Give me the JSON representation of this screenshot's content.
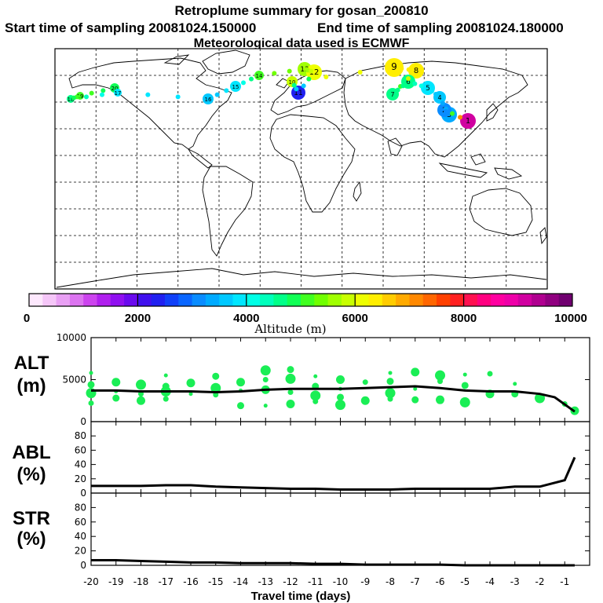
{
  "title": "Retroplume summary for gosan_200810",
  "start_time": "Start time of sampling 20081024.150000",
  "end_time": "End time of sampling 20081024.180000",
  "met_data": "Meteorological data used is ECMWF",
  "colorbar": {
    "label": "Altitude (m)",
    "ticks": [
      "0",
      "2000",
      "4000",
      "6000",
      "8000",
      "10000"
    ],
    "colors": [
      "#fde8fd",
      "#f5c6f8",
      "#e9a0f4",
      "#dc74f0",
      "#cc44ee",
      "#b020ee",
      "#9010f0",
      "#6a0aee",
      "#4010ee",
      "#2020f0",
      "#1040f8",
      "#0a66ff",
      "#0a8cff",
      "#00aaff",
      "#00c8ff",
      "#00e6ff",
      "#00ffe6",
      "#00ffbb",
      "#00ff88",
      "#10ff55",
      "#40ff20",
      "#70ff00",
      "#a0ff00",
      "#c8ff00",
      "#eeff00",
      "#ffee00",
      "#ffcc00",
      "#ffaa00",
      "#ff8800",
      "#ff6600",
      "#ff4000",
      "#ff2020",
      "#ff1050",
      "#ff0080",
      "#ff00a0",
      "#ee00a8",
      "#d000a0",
      "#b00090",
      "#900080",
      "#700070"
    ]
  },
  "map": {
    "plume_points": [
      {
        "day": "20",
        "alt": 4800
      },
      {
        "day": "19",
        "alt": 5200
      },
      {
        "day": "18",
        "alt": 4600
      },
      {
        "day": "17",
        "alt": 3900
      },
      {
        "day": "16",
        "alt": 3700
      },
      {
        "day": "15",
        "alt": 3800
      },
      {
        "day": "14",
        "alt": 5100
      },
      {
        "day": "13",
        "alt": 5600
      },
      {
        "day": "12",
        "alt": 6000
      },
      {
        "day": "11",
        "alt": 2300
      },
      {
        "day": "10",
        "alt": 5900
      },
      {
        "day": "9",
        "alt": 6300
      },
      {
        "day": "8",
        "alt": 6400
      },
      {
        "day": "7",
        "alt": 4600
      },
      {
        "day": "6",
        "alt": 4500
      },
      {
        "day": "5",
        "alt": 3900
      },
      {
        "day": "4",
        "alt": 3500
      },
      {
        "day": "3",
        "alt": 3300
      },
      {
        "day": "2",
        "alt": 3100
      },
      {
        "day": "1",
        "alt": 9000
      }
    ]
  },
  "chart_data": [
    {
      "type": "scatter",
      "panel_label": "ALT",
      "panel_unit": "(m)",
      "ylim": [
        0,
        10000
      ],
      "yticks": [
        "10000",
        "5000",
        "0"
      ],
      "xlim": [
        -20,
        0
      ],
      "line": {
        "x": [
          -20,
          -19,
          -18,
          -17,
          -16,
          -15,
          -14,
          -13,
          -12,
          -11,
          -10,
          -9,
          -8,
          -7,
          -6,
          -5,
          -4,
          -3,
          -2,
          -1.4,
          -0.6
        ],
        "y": [
          3700,
          3700,
          3600,
          3600,
          3600,
          3500,
          3600,
          3800,
          3900,
          3900,
          3900,
          4000,
          4100,
          4200,
          4000,
          3700,
          3600,
          3600,
          3300,
          2900,
          1200
        ]
      },
      "points": [
        {
          "x": -20,
          "y": 5800
        },
        {
          "x": -20,
          "y": 4400
        },
        {
          "x": -20,
          "y": 3400
        },
        {
          "x": -20,
          "y": 2200
        },
        {
          "x": -19,
          "y": 4700
        },
        {
          "x": -19,
          "y": 3600
        },
        {
          "x": -19,
          "y": 2800
        },
        {
          "x": -18,
          "y": 4400
        },
        {
          "x": -18,
          "y": 3300
        },
        {
          "x": -18,
          "y": 2500
        },
        {
          "x": -17,
          "y": 5500
        },
        {
          "x": -17,
          "y": 4200
        },
        {
          "x": -17,
          "y": 3600
        },
        {
          "x": -17,
          "y": 2700
        },
        {
          "x": -16,
          "y": 4600
        },
        {
          "x": -16,
          "y": 3300
        },
        {
          "x": -15,
          "y": 5400
        },
        {
          "x": -15,
          "y": 4000
        },
        {
          "x": -15,
          "y": 3200
        },
        {
          "x": -14,
          "y": 4700
        },
        {
          "x": -14,
          "y": 3700
        },
        {
          "x": -14,
          "y": 1900
        },
        {
          "x": -13,
          "y": 6100
        },
        {
          "x": -13,
          "y": 5000
        },
        {
          "x": -13,
          "y": 3800
        },
        {
          "x": -13,
          "y": 1900
        },
        {
          "x": -12,
          "y": 6200
        },
        {
          "x": -12,
          "y": 5100
        },
        {
          "x": -12,
          "y": 3500
        },
        {
          "x": -12,
          "y": 2100
        },
        {
          "x": -11,
          "y": 5400
        },
        {
          "x": -11,
          "y": 4200
        },
        {
          "x": -11,
          "y": 3100
        },
        {
          "x": -11,
          "y": 2400
        },
        {
          "x": -10,
          "y": 5000
        },
        {
          "x": -10,
          "y": 3900
        },
        {
          "x": -10,
          "y": 2900
        },
        {
          "x": -10,
          "y": 2000
        },
        {
          "x": -9,
          "y": 4700
        },
        {
          "x": -9,
          "y": 2500
        },
        {
          "x": -8,
          "y": 5800
        },
        {
          "x": -8,
          "y": 4800
        },
        {
          "x": -8,
          "y": 3400
        },
        {
          "x": -8,
          "y": 2700
        },
        {
          "x": -7,
          "y": 5900
        },
        {
          "x": -7,
          "y": 3900
        },
        {
          "x": -7,
          "y": 2600
        },
        {
          "x": -6,
          "y": 5500
        },
        {
          "x": -6,
          "y": 4800
        },
        {
          "x": -6,
          "y": 2600
        },
        {
          "x": -5,
          "y": 5600
        },
        {
          "x": -5,
          "y": 4300
        },
        {
          "x": -5,
          "y": 2300
        },
        {
          "x": -4,
          "y": 5700
        },
        {
          "x": -4,
          "y": 3300
        },
        {
          "x": -3,
          "y": 4500
        },
        {
          "x": -3,
          "y": 3300
        },
        {
          "x": -2,
          "y": 2800
        },
        {
          "x": -1,
          "y": 2100
        },
        {
          "x": -0.6,
          "y": 1300
        }
      ]
    },
    {
      "type": "line",
      "panel_label": "ABL",
      "panel_unit": "(%)",
      "ylim": [
        0,
        100
      ],
      "yticks": [
        "80",
        "60",
        "40",
        "20",
        "0"
      ],
      "x": [
        -20,
        -19,
        -18,
        -17,
        -16,
        -15,
        -14,
        -13,
        -12,
        -11,
        -10,
        -9,
        -8,
        -7,
        -6,
        -5,
        -4,
        -3,
        -2,
        -1,
        -0.6
      ],
      "y": [
        10,
        10,
        10,
        11,
        11,
        9,
        8,
        7,
        6,
        6,
        5,
        5,
        5,
        6,
        6,
        6,
        6,
        9,
        9,
        18,
        50
      ]
    },
    {
      "type": "line",
      "panel_label": "STR",
      "panel_unit": "(%)",
      "ylim": [
        0,
        100
      ],
      "yticks": [
        "80",
        "60",
        "40",
        "20",
        "0"
      ],
      "x": [
        -20,
        -19,
        -18,
        -17,
        -16,
        -15,
        -14,
        -13,
        -12,
        -11,
        -10,
        -9,
        -8,
        -7,
        -6,
        -5,
        -4,
        -3,
        -2,
        -1,
        -0.6
      ],
      "y": [
        7,
        7,
        6,
        5,
        4,
        4,
        3,
        3,
        3,
        2,
        2,
        1,
        1,
        1,
        1,
        0,
        0,
        0,
        0,
        0,
        0
      ]
    }
  ],
  "xaxis": {
    "ticks": [
      "-20",
      "-19",
      "-18",
      "-17",
      "-16",
      "-15",
      "-14",
      "-13",
      "-12",
      "-11",
      "-10",
      "-9",
      "-8",
      "-7",
      "-6",
      "-5",
      "-4",
      "-3",
      "-2",
      "-1"
    ],
    "label": "Travel time (days)"
  }
}
